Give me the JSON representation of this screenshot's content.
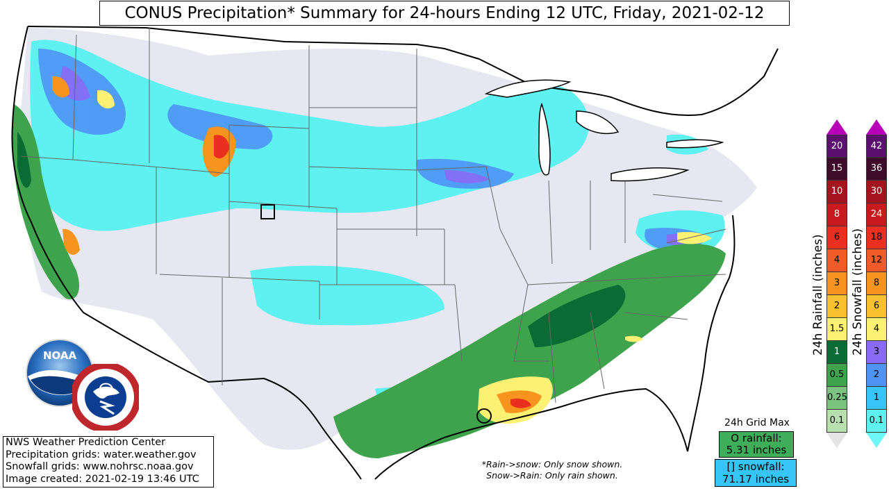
{
  "title": "CONUS Precipitation* Summary for 24-hours Ending 12 UTC, Friday, 2021-02-12",
  "rain_legend": {
    "label": "24h Rainfall (inches)",
    "values": [
      "20",
      "15",
      "10",
      "8",
      "6",
      "4",
      "3",
      "2",
      "1.5",
      "1",
      "0.5",
      "0.25",
      "0.1"
    ],
    "colors": [
      "#5b0f6e",
      "#3e0b2b",
      "#a3141f",
      "#c8191e",
      "#e93020",
      "#f15a29",
      "#f7941d",
      "#fbc02d",
      "#fdf173",
      "#0b6b34",
      "#3fa34d",
      "#7bc47f",
      "#b9dfb0"
    ],
    "cap_top": "#b800b8",
    "cap_bottom": "#e4e4e4"
  },
  "snow_legend": {
    "label": "24h Snowfall (inches)",
    "values": [
      "42",
      "36",
      "30",
      "24",
      "18",
      "12",
      "8",
      "6",
      "4",
      "3",
      "2",
      "1",
      "0.1"
    ],
    "colors": [
      "#5b0f6e",
      "#3e0b2b",
      "#a3141f",
      "#c8191e",
      "#e93020",
      "#f15a29",
      "#f7941d",
      "#fbc02d",
      "#fdf173",
      "#8a6bf5",
      "#4f93f5",
      "#37c4f6",
      "#5ff0f0"
    ],
    "cap_top": "#b800b8",
    "cap_bottom": "#6ff6f6"
  },
  "credits": {
    "line1": "NWS Weather Prediction Center",
    "line2": "Precipitation grids: water.weather.gov",
    "line3": "Snowfall grids: www.nohrsc.noaa.gov",
    "line4": "Image created: 2021-02-19 13:46 UTC"
  },
  "note": {
    "line1": "*Rain->snow: Only snow shown.",
    "line2": "Snow->Rain: Only rain shown."
  },
  "grid_max": {
    "title": "24h Grid Max",
    "rain_line1": "O rainfall:",
    "rain_line2": "5.31 inches",
    "snow_line1": "[] snowfall:",
    "snow_line2": "71.17 inches"
  },
  "logos": {
    "noaa_text": "NOAA",
    "nws_text": "NATIONAL WEATHER SERVICE"
  },
  "colors": {
    "state_line": "#666666",
    "border_line": "#000000",
    "snow_light": "#5ff0f0",
    "snow_mid": "#37c4f6",
    "snow_heavy": "#4f93f5",
    "snow_vheavy": "#8a6bf5",
    "trace": "#e6e6f0",
    "rain_light": "#7bc47f",
    "rain_mid": "#3fa34d",
    "rain_heavy": "#0b6b34",
    "heavy_yellow": "#fdf173",
    "heavy_orange": "#f7941d",
    "heavy_red": "#e93020"
  }
}
